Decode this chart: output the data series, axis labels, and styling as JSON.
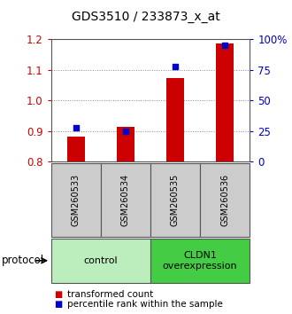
{
  "title": "GDS3510 / 233873_x_at",
  "samples": [
    "GSM260533",
    "GSM260534",
    "GSM260535",
    "GSM260536"
  ],
  "transformed_count": [
    0.882,
    0.915,
    1.073,
    1.185
  ],
  "percentile_rank": [
    28,
    25,
    78,
    95
  ],
  "ylim_left": [
    0.8,
    1.2
  ],
  "ylim_right": [
    0,
    100
  ],
  "yticks_left": [
    0.8,
    0.9,
    1.0,
    1.1,
    1.2
  ],
  "yticks_right": [
    0,
    25,
    50,
    75,
    100
  ],
  "ytick_right_labels": [
    "0",
    "25",
    "50",
    "75",
    "100%"
  ],
  "bar_color": "#cc0000",
  "dot_color": "#0000cc",
  "bar_bottom": 0.8,
  "groups": [
    {
      "label": "control",
      "indices": [
        0,
        1
      ],
      "color": "#bbeebc"
    },
    {
      "label": "CLDN1\noverexpression",
      "indices": [
        2,
        3
      ],
      "color": "#44cc44"
    }
  ],
  "protocol_label": "protocol",
  "legend_bar_label": "transformed count",
  "legend_dot_label": "percentile rank within the sample",
  "tick_color_left": "#cc0000",
  "tick_color_right": "#0000cc",
  "grid_color": "#888888",
  "sample_bg_color": "#cccccc",
  "bar_width": 0.35,
  "title_fontsize": 10,
  "tick_fontsize": 8.5,
  "label_fontsize": 8,
  "legend_fontsize": 7.5
}
